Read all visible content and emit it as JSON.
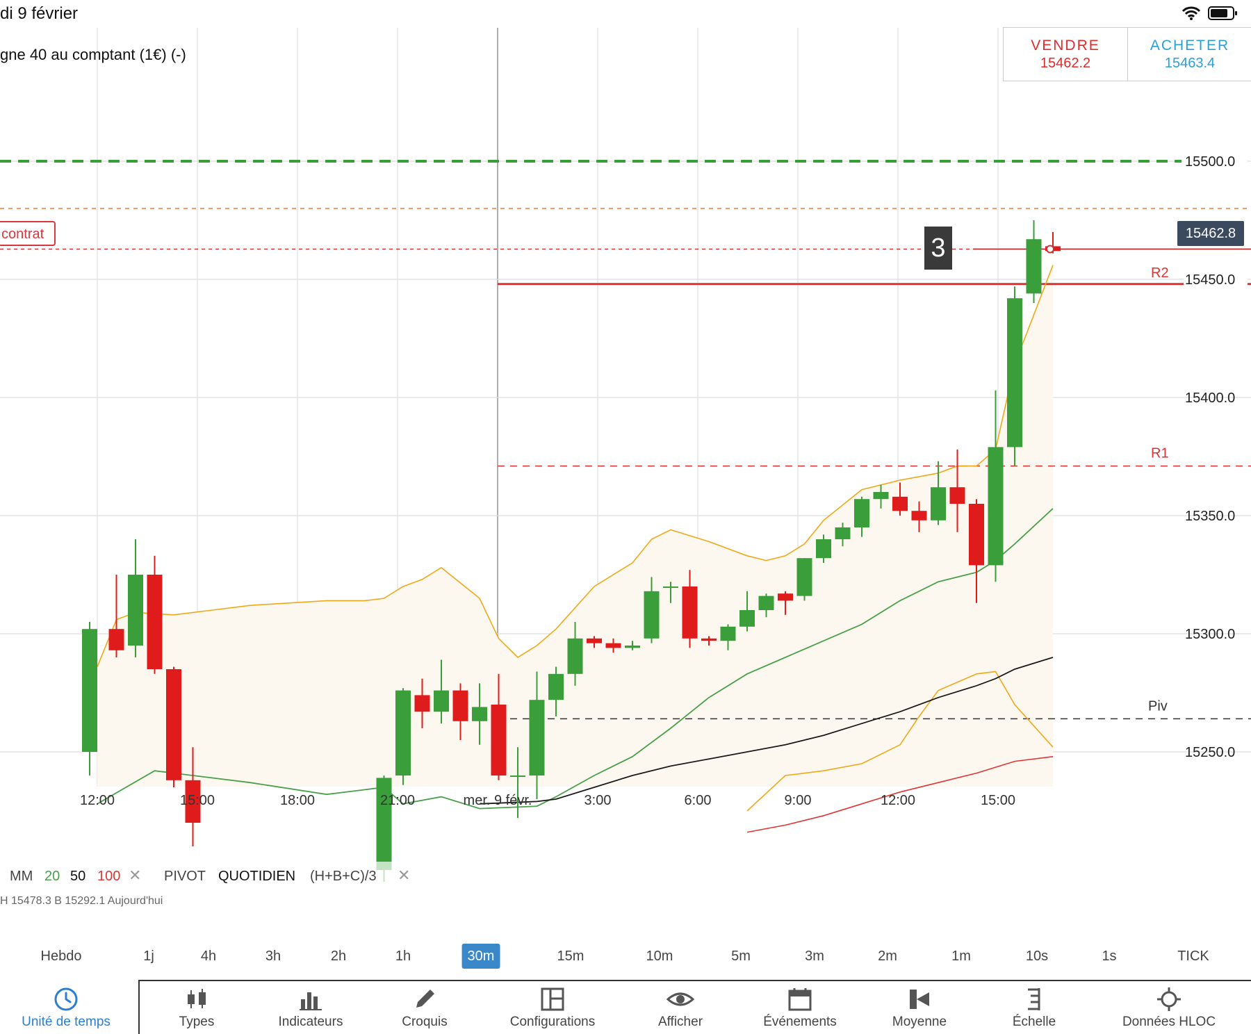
{
  "status": {
    "date": "di 9 février"
  },
  "instrument": {
    "title": "gne 40 au comptant (1€) (-)"
  },
  "trade": {
    "sell_label": "VENDRE",
    "sell_price": "15462.2",
    "buy_label": "ACHETER",
    "buy_price": "15463.4"
  },
  "contract_tag": "contrat",
  "price_tag": "15462.8",
  "count_badge": "3",
  "pivot_labels": {
    "r2": "R2",
    "r1": "R1",
    "piv": "Piv"
  },
  "indicator_legend": {
    "mm": "MM",
    "p20": "20",
    "p50": "50",
    "p100": "100",
    "pivot": "PIVOT",
    "quotidien": "QUOTIDIEN",
    "formula": "(H+B+C)/3",
    "sub": "H 15478.3   B 15292.1   Aujourd'hui"
  },
  "timeframes": [
    {
      "label": "Hebdo",
      "active": false
    },
    {
      "label": "1j",
      "active": false
    },
    {
      "label": "4h",
      "active": false
    },
    {
      "label": "3h",
      "active": false
    },
    {
      "label": "2h",
      "active": false
    },
    {
      "label": "1h",
      "active": false
    },
    {
      "label": "30m",
      "active": true
    },
    {
      "label": "15m",
      "active": false
    },
    {
      "label": "10m",
      "active": false
    },
    {
      "label": "5m",
      "active": false
    },
    {
      "label": "3m",
      "active": false
    },
    {
      "label": "2m",
      "active": false
    },
    {
      "label": "1m",
      "active": false
    },
    {
      "label": "10s",
      "active": false
    },
    {
      "label": "1s",
      "active": false
    },
    {
      "label": "TICK",
      "active": false
    }
  ],
  "toolbar": [
    {
      "label": "Unité de temps",
      "icon": "clock-icon",
      "active": true
    },
    {
      "label": "Types",
      "icon": "candles-icon",
      "active": false
    },
    {
      "label": "Indicateurs",
      "icon": "bar-chart-icon",
      "active": false
    },
    {
      "label": "Croquis",
      "icon": "pencil-icon",
      "active": false
    },
    {
      "label": "Configurations",
      "icon": "layout-icon",
      "active": false
    },
    {
      "label": "Afficher",
      "icon": "eye-icon",
      "active": false
    },
    {
      "label": "Événements",
      "icon": "calendar-icon",
      "active": false
    },
    {
      "label": "Moyenne",
      "icon": "average-icon",
      "active": false
    },
    {
      "label": "Échelle",
      "icon": "scale-icon",
      "active": false
    },
    {
      "label": "Données HLOC",
      "icon": "crosshair-icon",
      "active": false
    }
  ],
  "colors": {
    "up": "#3a9e3a",
    "down": "#e01b1b",
    "accent": "#3a88c9",
    "upper_band": "#f0a818",
    "ma20": "#4aa04a",
    "ma50": "#1a1a1a",
    "ma100": "#e03535"
  },
  "chart_data": {
    "type": "candlestick",
    "y_ticks": [
      15250.0,
      15300.0,
      15350.0,
      15400.0,
      15450.0,
      15500.0
    ],
    "y_tick_labels": [
      "15250.0",
      "15300.0",
      "15350.0",
      "15400.0",
      "15450.0",
      "15500.0"
    ],
    "x_ticks": [
      "12:00",
      "15:00",
      "18:00",
      "21:00",
      "mer. 9 févr.",
      "3:00",
      "6:00",
      "9:00",
      "12:00",
      "15:00"
    ],
    "ylim": [
      15212,
      15540
    ],
    "levels": {
      "take_profit": 15500.0,
      "upper_dashed": 15480.0,
      "current": 15462.8,
      "r2": 15448.0,
      "r1": 15371.0,
      "pivot": 15264.0
    },
    "candles": [
      {
        "t": -0.2,
        "o": 15250,
        "h": 15305,
        "l": 15240,
        "c": 15302
      },
      {
        "t": 0.5,
        "o": 15302,
        "h": 15325,
        "l": 15290,
        "c": 15293
      },
      {
        "t": 1.0,
        "o": 15295,
        "h": 15340,
        "l": 15290,
        "c": 15325
      },
      {
        "t": 1.5,
        "o": 15325,
        "h": 15333,
        "l": 15283,
        "c": 15285
      },
      {
        "t": 2.0,
        "o": 15285,
        "h": 15286,
        "l": 15235,
        "c": 15238
      },
      {
        "t": 2.5,
        "o": 15238,
        "h": 15252,
        "l": 15210,
        "c": 15220
      },
      {
        "t": 7.5,
        "o": 15200,
        "h": 15240,
        "l": 15195,
        "c": 15239
      },
      {
        "t": 8.0,
        "o": 15240,
        "h": 15277,
        "l": 15236,
        "c": 15276
      },
      {
        "t": 8.5,
        "o": 15274,
        "h": 15281,
        "l": 15260,
        "c": 15267
      },
      {
        "t": 9.0,
        "o": 15267,
        "h": 15289,
        "l": 15262,
        "c": 15276
      },
      {
        "t": 9.5,
        "o": 15276,
        "h": 15279,
        "l": 15255,
        "c": 15263
      },
      {
        "t": 10.0,
        "o": 15263,
        "h": 15279,
        "l": 15253,
        "c": 15269
      },
      {
        "t": 10.5,
        "o": 15270,
        "h": 15283,
        "l": 15238,
        "c": 15240
      },
      {
        "t": 11.0,
        "o": 15240,
        "h": 15252,
        "l": 15222,
        "c": 15240
      },
      {
        "t": 11.5,
        "o": 15240,
        "h": 15284,
        "l": 15230,
        "c": 15272
      },
      {
        "t": 12.0,
        "o": 15272,
        "h": 15286,
        "l": 15265,
        "c": 15283
      },
      {
        "t": 12.5,
        "o": 15283,
        "h": 15305,
        "l": 15278,
        "c": 15298
      },
      {
        "t": 13.0,
        "o": 15298,
        "h": 15299,
        "l": 15294,
        "c": 15296
      },
      {
        "t": 13.5,
        "o": 15296,
        "h": 15298,
        "l": 15292,
        "c": 15294
      },
      {
        "t": 14.0,
        "o": 15294,
        "h": 15297,
        "l": 15293,
        "c": 15295
      },
      {
        "t": 14.5,
        "o": 15298,
        "h": 15324,
        "l": 15296,
        "c": 15318
      },
      {
        "t": 15.0,
        "o": 15320,
        "h": 15322,
        "l": 15313,
        "c": 15320
      },
      {
        "t": 15.5,
        "o": 15320,
        "h": 15327,
        "l": 15294,
        "c": 15298
      },
      {
        "t": 16.0,
        "o": 15298,
        "h": 15299,
        "l": 15295,
        "c": 15297
      },
      {
        "t": 16.5,
        "o": 15297,
        "h": 15304,
        "l": 15293,
        "c": 15303
      },
      {
        "t": 17.0,
        "o": 15303,
        "h": 15318,
        "l": 15301,
        "c": 15310
      },
      {
        "t": 17.5,
        "o": 15310,
        "h": 15317,
        "l": 15307,
        "c": 15316
      },
      {
        "t": 18.0,
        "o": 15317,
        "h": 15318,
        "l": 15308,
        "c": 15314
      },
      {
        "t": 18.5,
        "o": 15316,
        "h": 15332,
        "l": 15314,
        "c": 15332
      },
      {
        "t": 19.0,
        "o": 15332,
        "h": 15342,
        "l": 15330,
        "c": 15340
      },
      {
        "t": 19.5,
        "o": 15340,
        "h": 15347,
        "l": 15337,
        "c": 15345
      },
      {
        "t": 20.0,
        "o": 15345,
        "h": 15358,
        "l": 15341,
        "c": 15357
      },
      {
        "t": 20.5,
        "o": 15357,
        "h": 15363,
        "l": 15353,
        "c": 15360
      },
      {
        "t": 21.0,
        "o": 15358,
        "h": 15364,
        "l": 15350,
        "c": 15352
      },
      {
        "t": 21.5,
        "o": 15352,
        "h": 15356,
        "l": 15343,
        "c": 15348
      },
      {
        "t": 22.0,
        "o": 15348,
        "h": 15373,
        "l": 15346,
        "c": 15362
      },
      {
        "t": 22.5,
        "o": 15362,
        "h": 15378,
        "l": 15343,
        "c": 15355
      },
      {
        "t": 23.0,
        "o": 15355,
        "h": 15357,
        "l": 15313,
        "c": 15329
      },
      {
        "t": 23.5,
        "o": 15329,
        "h": 15403,
        "l": 15322,
        "c": 15379
      },
      {
        "t": 24.0,
        "o": 15379,
        "h": 15447,
        "l": 15371,
        "c": 15442
      },
      {
        "t": 24.5,
        "o": 15444,
        "h": 15475,
        "l": 15440,
        "c": 15467
      },
      {
        "t": 25.0,
        "o": 15464,
        "h": 15470,
        "l": 15461,
        "c": 15462
      }
    ],
    "upper_band": [
      [
        0.0,
        15286
      ],
      [
        0.5,
        15306
      ],
      [
        1.0,
        15309
      ],
      [
        2.0,
        15308
      ],
      [
        3.0,
        15310
      ],
      [
        4.0,
        15312
      ],
      [
        5.0,
        15313
      ],
      [
        6.0,
        15314
      ],
      [
        7.0,
        15314
      ],
      [
        7.5,
        15315
      ],
      [
        8.0,
        15320
      ],
      [
        8.5,
        15323
      ],
      [
        9.0,
        15328
      ],
      [
        10.0,
        15315
      ],
      [
        10.5,
        15298
      ],
      [
        11.0,
        15290
      ],
      [
        11.5,
        15295
      ],
      [
        12.0,
        15302
      ],
      [
        13.0,
        15320
      ],
      [
        14.0,
        15330
      ],
      [
        14.5,
        15340
      ],
      [
        15.0,
        15344
      ],
      [
        16.0,
        15339
      ],
      [
        17.0,
        15333
      ],
      [
        17.5,
        15331
      ],
      [
        18.0,
        15333
      ],
      [
        18.5,
        15338
      ],
      [
        19.0,
        15348
      ],
      [
        20.0,
        15361
      ],
      [
        21.0,
        15365
      ],
      [
        22.0,
        15368
      ],
      [
        22.5,
        15371
      ],
      [
        23.0,
        15371
      ],
      [
        23.5,
        15378
      ],
      [
        24.0,
        15414
      ],
      [
        25.0,
        15456
      ]
    ],
    "lower_band": [
      [
        17.0,
        15225
      ],
      [
        18.0,
        15240
      ],
      [
        19.0,
        15242
      ],
      [
        20.0,
        15245
      ],
      [
        21.0,
        15253
      ],
      [
        21.5,
        15265
      ],
      [
        22.0,
        15276
      ],
      [
        23.0,
        15283
      ],
      [
        23.5,
        15284
      ],
      [
        24.0,
        15270
      ],
      [
        25.0,
        15252
      ]
    ],
    "ma20": [
      [
        0.0,
        15228
      ],
      [
        1.5,
        15242
      ],
      [
        2.5,
        15240
      ],
      [
        4.0,
        15237
      ],
      [
        6.0,
        15232
      ],
      [
        7.5,
        15235
      ],
      [
        8.0,
        15228
      ],
      [
        9.0,
        15231
      ],
      [
        10.0,
        15226
      ],
      [
        11.5,
        15227
      ],
      [
        12.0,
        15231
      ],
      [
        13.0,
        15240
      ],
      [
        14.0,
        15248
      ],
      [
        15.0,
        15260
      ],
      [
        16.0,
        15273
      ],
      [
        17.0,
        15283
      ],
      [
        18.0,
        15290
      ],
      [
        19.0,
        15297
      ],
      [
        20.0,
        15304
      ],
      [
        21.0,
        15314
      ],
      [
        22.0,
        15322
      ],
      [
        23.0,
        15326
      ],
      [
        23.5,
        15331
      ],
      [
        24.0,
        15338
      ],
      [
        25.0,
        15353
      ]
    ],
    "ma50": [
      [
        10.0,
        15228
      ],
      [
        11.5,
        15229
      ],
      [
        12.0,
        15230
      ],
      [
        13.0,
        15235
      ],
      [
        14.0,
        15240
      ],
      [
        15.0,
        15244
      ],
      [
        16.0,
        15247
      ],
      [
        17.0,
        15250
      ],
      [
        18.0,
        15253
      ],
      [
        19.0,
        15257
      ],
      [
        20.0,
        15262
      ],
      [
        21.0,
        15267
      ],
      [
        22.0,
        15273
      ],
      [
        23.0,
        15278
      ],
      [
        23.5,
        15281
      ],
      [
        24.0,
        15285
      ],
      [
        25.0,
        15290
      ]
    ],
    "ma100": [
      [
        17.0,
        15216
      ],
      [
        18.0,
        15219
      ],
      [
        19.0,
        15223
      ],
      [
        20.0,
        15228
      ],
      [
        21.0,
        15233
      ],
      [
        22.0,
        15237
      ],
      [
        23.0,
        15241
      ],
      [
        24.0,
        15246
      ],
      [
        25.0,
        15248
      ]
    ]
  }
}
